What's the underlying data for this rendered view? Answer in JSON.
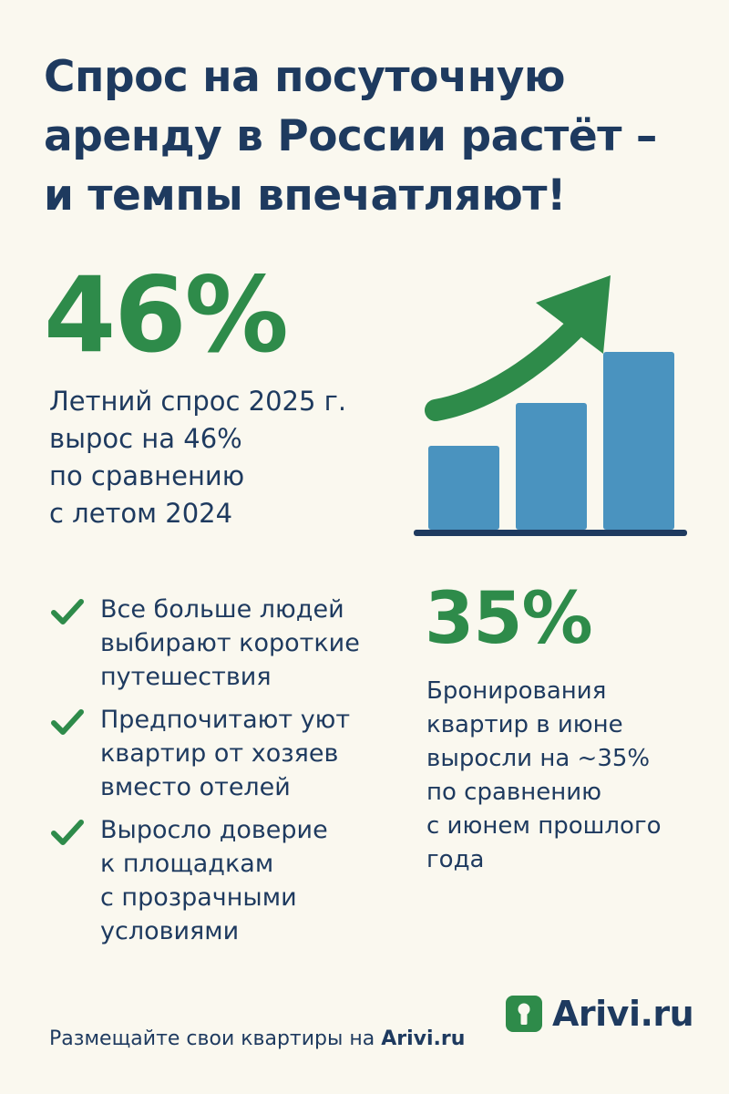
{
  "title_lines": [
    "Спрос на посуточную",
    "аренду в России растёт –",
    "и темпы впечатляют!"
  ],
  "stat1": {
    "value": "46%",
    "description_lines": [
      "Летний спрос 2025 г.",
      "вырос на 46%",
      "по сравнению",
      "с летом 2024"
    ]
  },
  "stat2": {
    "value": "35%",
    "description_lines": [
      "Бронирования",
      "квартир в июне",
      "выросли на ~35%",
      "по сравнению",
      "с июнем прошлого",
      "года"
    ]
  },
  "checklist": [
    {
      "icon": "check-icon",
      "lines": [
        "Все больше людей",
        "выбирают короткие",
        "путешествия"
      ]
    },
    {
      "icon": "check-icon",
      "lines": [
        "Предпочитают уют",
        "квартир от хозяев",
        "вместо отелей"
      ]
    },
    {
      "icon": "check-icon",
      "lines": [
        "Выросло доверие",
        "к площадкам",
        "с прозрачными",
        "условиями"
      ]
    }
  ],
  "logo": {
    "text": "Arivi.ru",
    "icon": "keyhole-icon"
  },
  "footer": {
    "text": "Размещайте свои квартиры на ",
    "brand": "Arivi.ru"
  },
  "colors": {
    "background": "#FAF8EF",
    "navy": "#1E3A5F",
    "green": "#2E8B4A",
    "bar_blue": "#4A93BF"
  },
  "illustration": {
    "type": "growth-bar-icon",
    "bar_levels": [
      0.45,
      0.68,
      0.95
    ]
  }
}
